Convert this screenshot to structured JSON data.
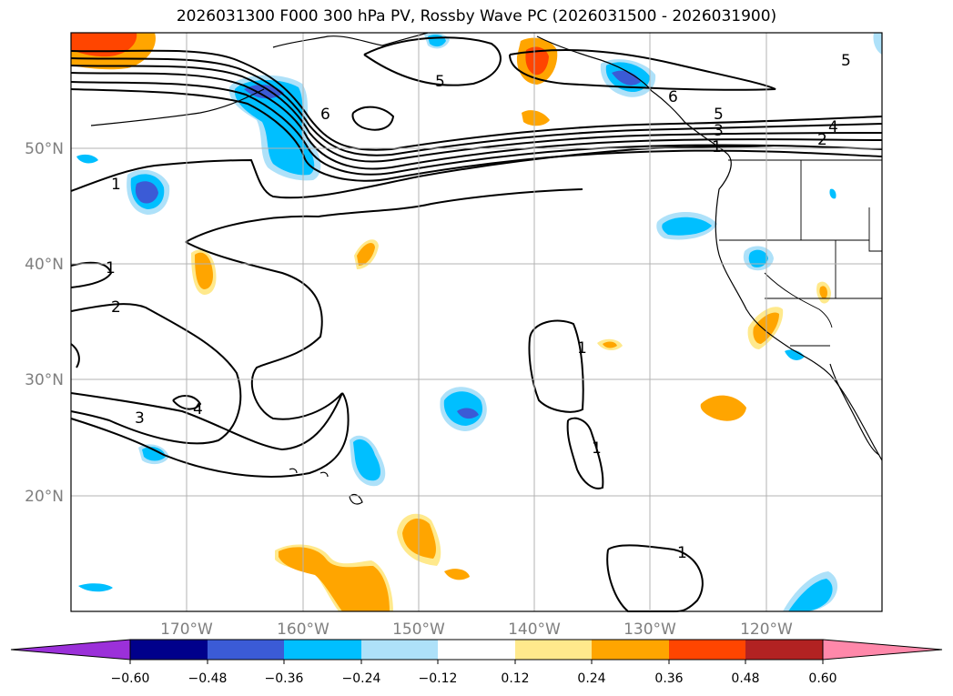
{
  "title": "2026031300 F000 300 hPa PV, Rossby Wave PC (2026031500 - 2026031900)",
  "map": {
    "lon_labels": [
      "170°W",
      "160°W",
      "150°W",
      "140°W",
      "130°W",
      "120°W"
    ],
    "lat_labels": [
      "50°N",
      "40°N",
      "30°N",
      "20°N"
    ],
    "contour_labels": [
      "5",
      "6",
      "5",
      "3",
      "4",
      "2",
      "1",
      "1",
      "2",
      "3",
      "1",
      "1",
      "1",
      "6",
      "1",
      "5",
      "4"
    ]
  },
  "colorbar": {
    "ticks": [
      "−0.60",
      "−0.48",
      "−0.36",
      "−0.24",
      "−0.12",
      "0.12",
      "0.24",
      "0.36",
      "0.48",
      "0.60"
    ],
    "colors": [
      "#9b30d9",
      "#00008b",
      "#3b5bd6",
      "#00bfff",
      "#aee1f9",
      "#ffffff",
      "#ffe98c",
      "#ffa500",
      "#ff4500",
      "#b22222",
      "#ff88aa"
    ]
  },
  "colors": {
    "grid": "#b3b3b3",
    "axis_label": "#7f7f7f",
    "contour": "#000000"
  }
}
